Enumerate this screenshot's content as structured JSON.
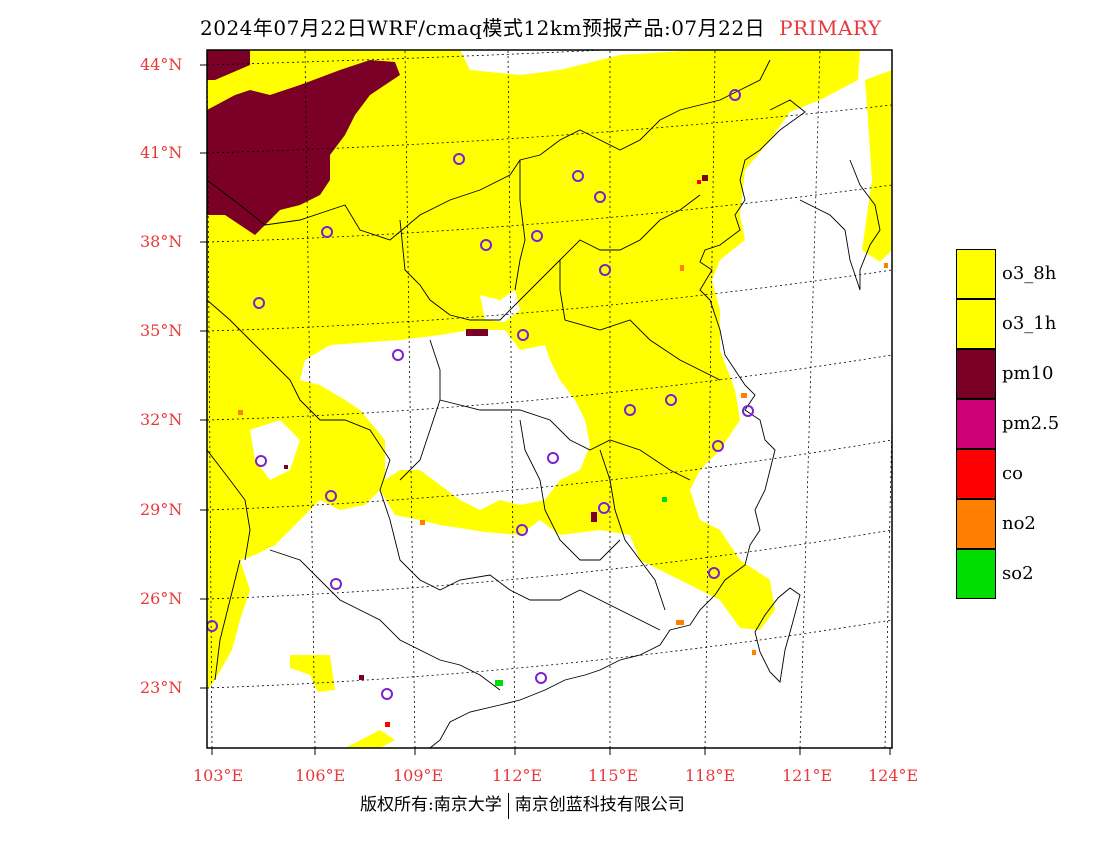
{
  "title": {
    "text": "2024年07月22日WRF/cmaq模式12km预报产品:07月22日",
    "pollutant_type": "PRIMARY"
  },
  "colors": {
    "o3_8h": "#ffff00",
    "o3_1h": "#ffff00",
    "pm10": "#7a0028",
    "pm2_5": "#cc0077",
    "co": "#ff0000",
    "no2": "#ff7f00",
    "so2": "#00dd00",
    "label": "#e8383a",
    "city_marker": "#7a22cc"
  },
  "latitude_labels": [
    "44°N",
    "41°N",
    "38°N",
    "35°N",
    "32°N",
    "29°N",
    "26°N",
    "23°N"
  ],
  "longitude_labels": [
    "103°E",
    "106°E",
    "109°E",
    "112°E",
    "115°E",
    "118°E",
    "121°E",
    "124°E"
  ],
  "legend": [
    {
      "key": "o3_8h",
      "label": "o3_8h"
    },
    {
      "key": "o3_1h",
      "label": "o3_1h"
    },
    {
      "key": "pm10",
      "label": "pm10"
    },
    {
      "key": "pm2_5",
      "label": "pm2.5"
    },
    {
      "key": "co",
      "label": "co"
    },
    {
      "key": "no2",
      "label": "no2"
    },
    {
      "key": "so2",
      "label": "so2"
    }
  ],
  "credit": {
    "left": "版权所有:南京大学",
    "right": "南京创蓝科技有限公司"
  },
  "icons": {
    "city_marker": "circle-city-icon"
  }
}
